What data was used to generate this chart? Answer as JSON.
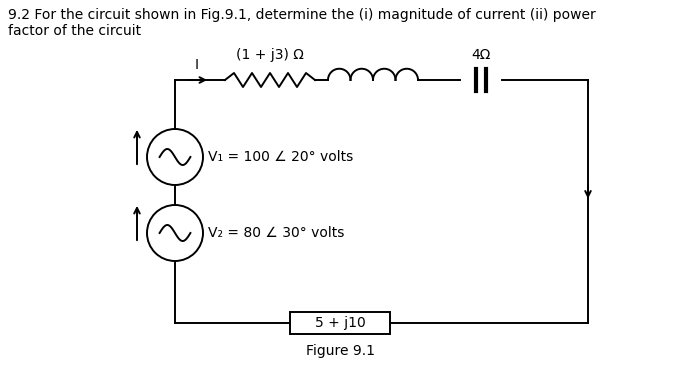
{
  "title_text": "9.2 For the circuit shown in Fig.9.1, determine the (i) magnitude of current (ii) power\nfactor of the circuit",
  "figure_label": "Figure 9.1",
  "V1_label": "V₁ = 100 ∠ 20° volts",
  "V2_label": "V₂ = 80 ∠ 30° volts",
  "impedance_top_label": "(1 + j3) Ω",
  "cap_label": "4Ω",
  "bottom_label": "5 + j10",
  "current_label": "I",
  "bg_color": "#ffffff",
  "line_color": "#000000",
  "font_size": 10,
  "small_font_size": 10
}
